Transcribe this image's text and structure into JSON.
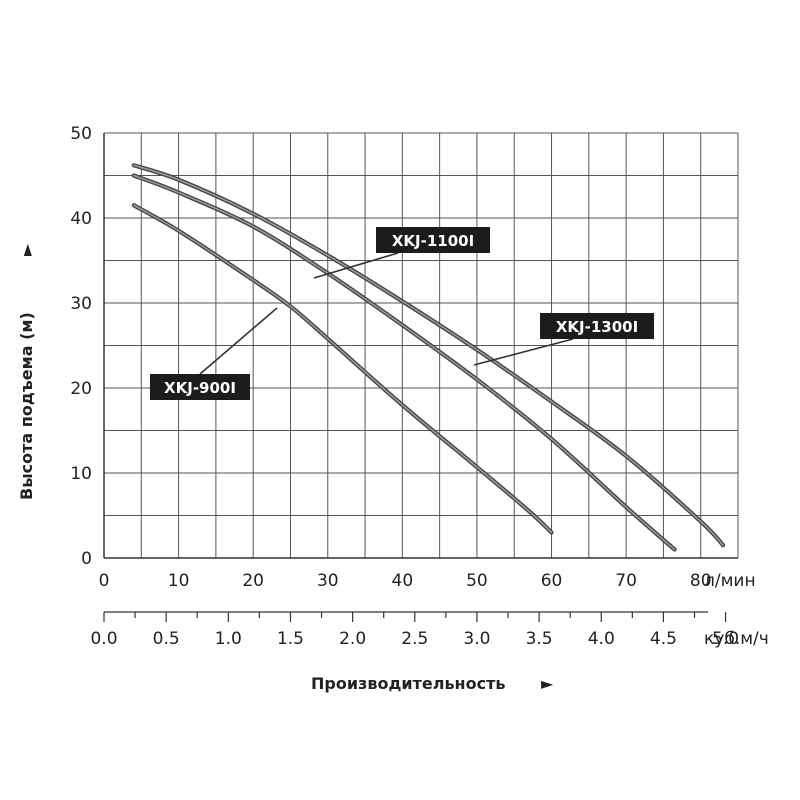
{
  "chart_data": {
    "type": "line",
    "ylabel": "Высота подъема (м)",
    "xlabel": "Производительность",
    "x_unit": "л/мин",
    "x2_unit": "куб.м/ч",
    "xlim": [
      0,
      85
    ],
    "ylim": [
      0,
      50
    ],
    "x_ticks": [
      "0",
      "10",
      "20",
      "30",
      "40",
      "50",
      "60",
      "70",
      "80"
    ],
    "x2_ticks": [
      "0.0",
      "0.5",
      "1.0",
      "1.5",
      "2.0",
      "2.5",
      "3.0",
      "3.5",
      "4.0",
      "4.5",
      "5.0"
    ],
    "y_ticks": [
      "0",
      "10",
      "20",
      "30",
      "40",
      "50"
    ],
    "grid": true,
    "series": [
      {
        "name": "XKJ-900I",
        "x": [
          4,
          10,
          20,
          25,
          30,
          40,
          50,
          57,
          60
        ],
        "y": [
          41.5,
          38.5,
          32.7,
          29.6,
          25.8,
          18,
          10.7,
          5.5,
          3
        ]
      },
      {
        "name": "XKJ-1100I",
        "x": [
          4,
          10,
          20,
          30,
          40,
          50,
          60,
          70,
          76.5
        ],
        "y": [
          45,
          43,
          39,
          33.5,
          27.4,
          21,
          14,
          6,
          1
        ]
      },
      {
        "name": "XKJ-1300I",
        "x": [
          4,
          10,
          20,
          30,
          40,
          50,
          60,
          70,
          80,
          83
        ],
        "y": [
          46.2,
          44.5,
          40.5,
          35.6,
          30.2,
          24.5,
          18.4,
          12,
          4.3,
          1.5
        ]
      }
    ],
    "annotations": [
      {
        "text": "XKJ-1100I"
      },
      {
        "text": "XKJ-1300I"
      },
      {
        "text": "XKJ-900I"
      }
    ]
  }
}
